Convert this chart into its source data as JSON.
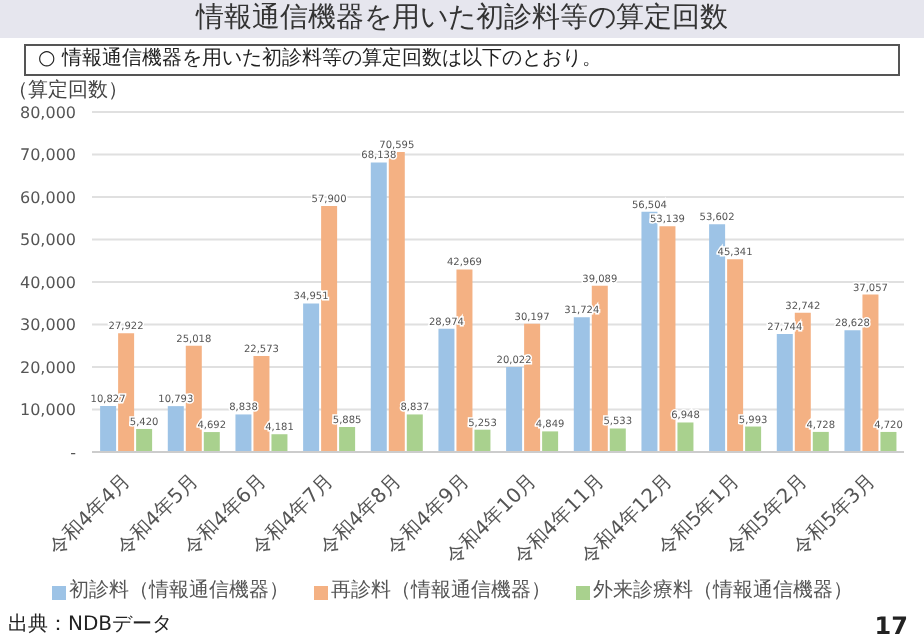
{
  "chart_data": {
    "type": "bar",
    "title": "情報通信機器を用いた初診料等の算定回数",
    "subtitle": "○ 情報通信機器を用いた初診料等の算定回数は以下のとおり。",
    "ylabel": "（算定回数）",
    "categories": [
      "令和4年4月",
      "令和4年5月",
      "令和4年6月",
      "令和4年7月",
      "令和4年8月",
      "令和4年9月",
      "令和4年10月",
      "令和4年11月",
      "令和4年12月",
      "令和5年1月",
      "令和5年2月",
      "令和5年3月"
    ],
    "series": [
      {
        "name": "初診料（情報通信機器）",
        "color": "#9dc3e6",
        "values": [
          10827,
          10793,
          8838,
          34951,
          68138,
          28974,
          20022,
          31724,
          56504,
          53602,
          27744,
          28628
        ],
        "value_labels": [
          "10,827",
          "10,793",
          "8,838",
          "34,951",
          "68,138",
          "28,974",
          "20,022",
          "31,724",
          "56,504",
          "53,602",
          "27,744",
          "28,628"
        ]
      },
      {
        "name": "再診料（情報通信機器）",
        "color": "#f4b183",
        "values": [
          27922,
          25018,
          22573,
          57900,
          70595,
          42969,
          30197,
          39089,
          53139,
          45341,
          32742,
          37057
        ],
        "value_labels": [
          "27,922",
          "25,018",
          "22,573",
          "57,900",
          "70,595",
          "42,969",
          "30,197",
          "39,089",
          "53,139",
          "45,341",
          "32,742",
          "37,057"
        ]
      },
      {
        "name": "外来診療料（情報通信機器）",
        "color": "#a9d18e",
        "values": [
          5420,
          4692,
          4181,
          5885,
          8837,
          5253,
          4849,
          5533,
          6948,
          5993,
          4728,
          4720
        ],
        "value_labels": [
          "5,420",
          "4,692",
          "4,181",
          "5,885",
          "8,837",
          "5,253",
          "4,849",
          "5,533",
          "6,948",
          "5,993",
          "4,728",
          "4,720"
        ]
      }
    ],
    "ylim": [
      0,
      80000
    ],
    "yticks": [
      {
        "value": 0,
        "label": "-"
      },
      {
        "value": 10000,
        "label": "10,000"
      },
      {
        "value": 20000,
        "label": "20,000"
      },
      {
        "value": 30000,
        "label": "30,000"
      },
      {
        "value": 40000,
        "label": "40,000"
      },
      {
        "value": 50000,
        "label": "50,000"
      },
      {
        "value": 60000,
        "label": "60,000"
      },
      {
        "value": 70000,
        "label": "70,000"
      },
      {
        "value": 80000,
        "label": "80,000"
      }
    ],
    "grid": "y",
    "legend": "bottom",
    "annotations": [
      "出典：NDBデータ",
      "17"
    ]
  }
}
